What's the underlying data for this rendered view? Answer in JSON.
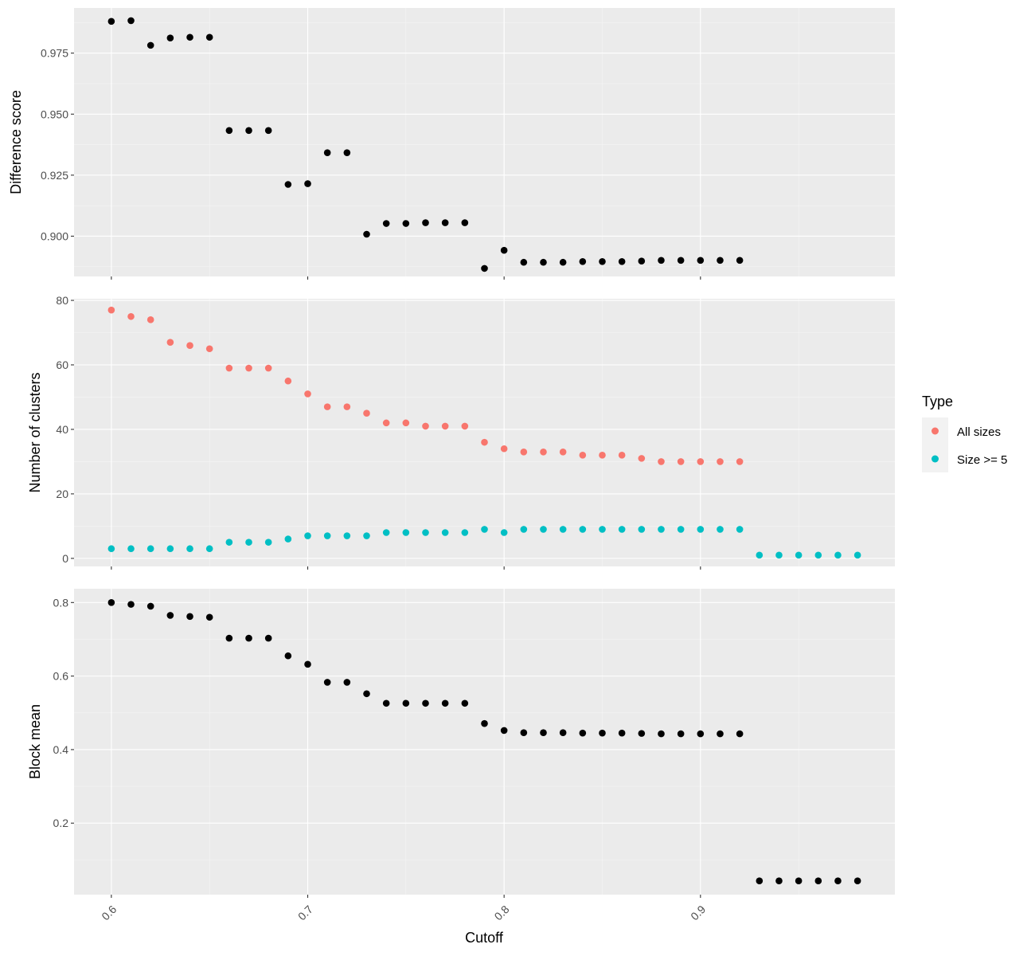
{
  "chart_data": [
    {
      "type": "scatter",
      "ylabel": "Difference score",
      "ylim": [
        0.8835,
        0.9935
      ],
      "yticks": [
        0.9,
        0.925,
        0.95,
        0.975
      ],
      "ytick_labels": [
        "0.900",
        "0.925",
        "0.950",
        "0.975"
      ],
      "grid": true,
      "series": [
        {
          "color": "#000000",
          "x": [
            0.6,
            0.61,
            0.62,
            0.63,
            0.64,
            0.65,
            0.66,
            0.67,
            0.68,
            0.69,
            0.7,
            0.71,
            0.72,
            0.73,
            0.74,
            0.75,
            0.76,
            0.77,
            0.78,
            0.79,
            0.8,
            0.81,
            0.82,
            0.83,
            0.84,
            0.85,
            0.86,
            0.87,
            0.88,
            0.89,
            0.9,
            0.91,
            0.92
          ],
          "y": [
            0.988,
            0.9883,
            0.9782,
            0.9812,
            0.9815,
            0.9815,
            0.9433,
            0.9433,
            0.9433,
            0.9212,
            0.9215,
            0.9342,
            0.9342,
            0.9008,
            0.9052,
            0.9052,
            0.9055,
            0.9055,
            0.9055,
            0.8868,
            0.8942,
            0.8893,
            0.8893,
            0.8893,
            0.8896,
            0.8896,
            0.8896,
            0.8898,
            0.8901,
            0.8901,
            0.8901,
            0.8901,
            0.8901
          ]
        }
      ]
    },
    {
      "type": "scatter",
      "ylabel": "Number of clusters",
      "ylim": [
        -2.5,
        80.5
      ],
      "yticks": [
        0,
        20,
        40,
        60,
        80
      ],
      "ytick_labels": [
        "0",
        "20",
        "40",
        "60",
        "80"
      ],
      "grid": true,
      "legend": {
        "title": "Type",
        "position": "right",
        "entries": [
          {
            "label": "All sizes",
            "color": "#f8766d"
          },
          {
            "label": "Size >= 5",
            "color": "#00bfc4"
          }
        ]
      },
      "series": [
        {
          "name": "All sizes",
          "color": "#f8766d",
          "x": [
            0.6,
            0.61,
            0.62,
            0.63,
            0.64,
            0.65,
            0.66,
            0.67,
            0.68,
            0.69,
            0.7,
            0.71,
            0.72,
            0.73,
            0.74,
            0.75,
            0.76,
            0.77,
            0.78,
            0.79,
            0.8,
            0.81,
            0.82,
            0.83,
            0.84,
            0.85,
            0.86,
            0.87,
            0.88,
            0.89,
            0.9,
            0.91,
            0.92
          ],
          "y": [
            77,
            75,
            74,
            67,
            66,
            65,
            59,
            59,
            59,
            55,
            51,
            47,
            47,
            45,
            42,
            42,
            41,
            41,
            41,
            36,
            34,
            33,
            33,
            33,
            32,
            32,
            32,
            31,
            30,
            30,
            30,
            30,
            30
          ]
        },
        {
          "name": "Size >= 5",
          "color": "#00bfc4",
          "x": [
            0.6,
            0.61,
            0.62,
            0.63,
            0.64,
            0.65,
            0.66,
            0.67,
            0.68,
            0.69,
            0.7,
            0.71,
            0.72,
            0.73,
            0.74,
            0.75,
            0.76,
            0.77,
            0.78,
            0.79,
            0.8,
            0.81,
            0.82,
            0.83,
            0.84,
            0.85,
            0.86,
            0.87,
            0.88,
            0.89,
            0.9,
            0.91,
            0.92,
            0.93,
            0.94,
            0.95,
            0.96,
            0.97,
            0.98
          ],
          "y": [
            3,
            3,
            3,
            3,
            3,
            3,
            5,
            5,
            5,
            6,
            7,
            7,
            7,
            7,
            8,
            8,
            8,
            8,
            8,
            9,
            8,
            9,
            9,
            9,
            9,
            9,
            9,
            9,
            9,
            9,
            9,
            9,
            9,
            1,
            1,
            1,
            1,
            1,
            1
          ]
        }
      ]
    },
    {
      "type": "scatter",
      "ylabel": "Block mean",
      "xlabel": "Cutoff",
      "xlim": [
        0.581,
        0.999
      ],
      "xticks": [
        0.6,
        0.7,
        0.8,
        0.9
      ],
      "xtick_labels": [
        "0.6",
        "0.7",
        "0.8",
        "0.9"
      ],
      "ylim": [
        0.0055,
        0.8375
      ],
      "yticks": [
        0.2,
        0.4,
        0.6,
        0.8
      ],
      "ytick_labels": [
        "0.2",
        "0.4",
        "0.6",
        "0.8"
      ],
      "grid": true,
      "series": [
        {
          "color": "#000000",
          "x": [
            0.6,
            0.61,
            0.62,
            0.63,
            0.64,
            0.65,
            0.66,
            0.67,
            0.68,
            0.69,
            0.7,
            0.71,
            0.72,
            0.73,
            0.74,
            0.75,
            0.76,
            0.77,
            0.78,
            0.79,
            0.8,
            0.81,
            0.82,
            0.83,
            0.84,
            0.85,
            0.86,
            0.87,
            0.88,
            0.89,
            0.9,
            0.91,
            0.92,
            0.93,
            0.94,
            0.95,
            0.96,
            0.97,
            0.98
          ],
          "y": [
            0.8,
            0.795,
            0.79,
            0.765,
            0.762,
            0.76,
            0.703,
            0.703,
            0.703,
            0.655,
            0.632,
            0.583,
            0.583,
            0.552,
            0.526,
            0.526,
            0.526,
            0.526,
            0.526,
            0.471,
            0.452,
            0.446,
            0.446,
            0.446,
            0.445,
            0.445,
            0.445,
            0.444,
            0.443,
            0.443,
            0.443,
            0.443,
            0.443,
            0.043,
            0.043,
            0.043,
            0.043,
            0.043,
            0.043
          ]
        }
      ]
    }
  ]
}
